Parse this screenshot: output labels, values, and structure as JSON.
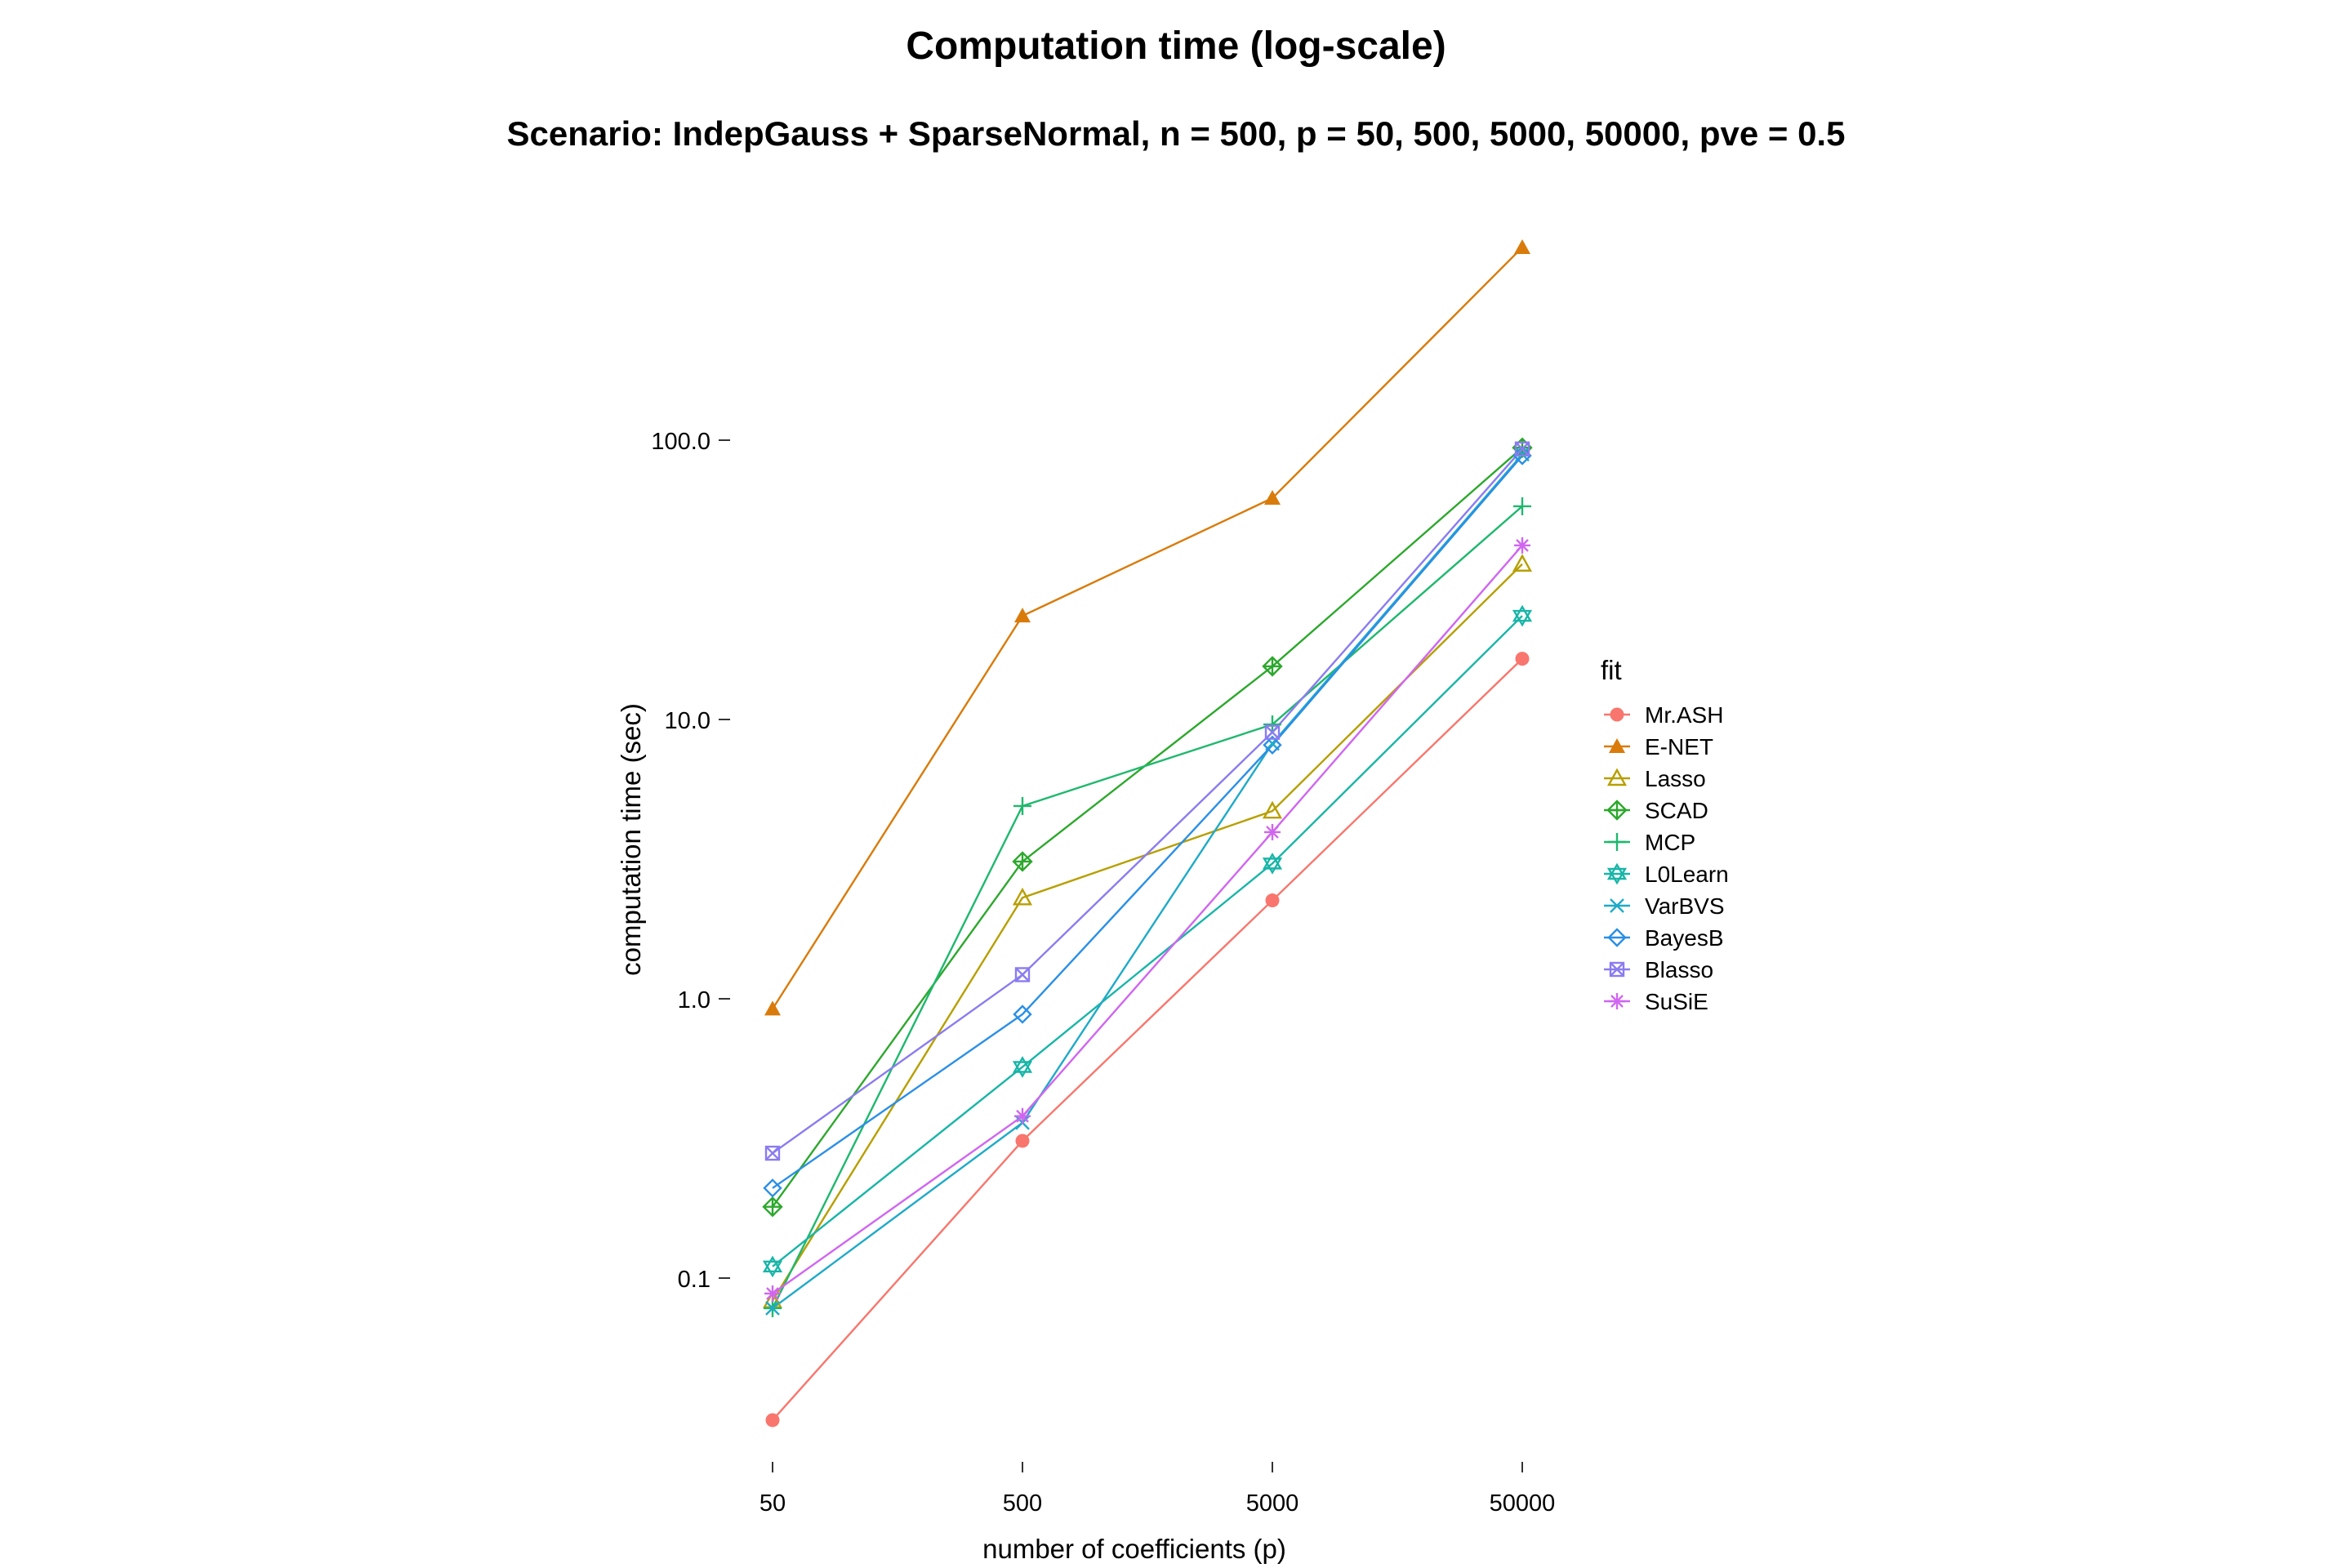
{
  "chart_data": {
    "type": "line",
    "title": "Computation time (log-scale)",
    "subtitle": "Scenario: IndepGauss + SparseNormal, n = 500, p = 50, 500, 5000, 50000, pve = 0.5",
    "xlabel": "number of coefficients (p)",
    "ylabel": "computation time (sec)",
    "x_scale": "log10",
    "y_scale": "log10",
    "x": [
      50,
      500,
      5000,
      50000
    ],
    "x_tick_labels": [
      "50",
      "500",
      "5000",
      "50000"
    ],
    "y_ticks": [
      0.1,
      1.0,
      10.0,
      100.0
    ],
    "y_tick_labels": [
      "0.1",
      "1.0",
      "10.0",
      "100.0"
    ],
    "ylim": [
      0.02,
      800
    ],
    "grid": false,
    "legend_title": "fit",
    "legend_position": "right",
    "series": [
      {
        "name": "Mr.ASH",
        "color": "#F8766D",
        "shape": "filled-circle",
        "values": [
          0.031,
          0.31,
          2.25,
          16.5
        ]
      },
      {
        "name": "E-NET",
        "color": "#D97B0A",
        "shape": "filled-triangle",
        "values": [
          0.92,
          23.5,
          62,
          490
        ]
      },
      {
        "name": "Lasso",
        "color": "#B79F00",
        "shape": "open-triangle",
        "values": [
          0.083,
          2.3,
          4.7,
          36
        ]
      },
      {
        "name": "SCAD",
        "color": "#2DA82D",
        "shape": "diamond-plus",
        "values": [
          0.18,
          3.1,
          15.5,
          94
        ]
      },
      {
        "name": "MCP",
        "color": "#1FB86E",
        "shape": "plus",
        "values": [
          0.078,
          4.9,
          9.6,
          58
        ]
      },
      {
        "name": "L0Learn",
        "color": "#19B5A8",
        "shape": "star-of-david",
        "values": [
          0.11,
          0.57,
          3.05,
          23.5
        ]
      },
      {
        "name": "VarBVS",
        "color": "#1FAAC8",
        "shape": "cross",
        "values": [
          0.078,
          0.36,
          8.2,
          89
        ]
      },
      {
        "name": "BayesB",
        "color": "#2A8FE6",
        "shape": "open-diamond",
        "values": [
          0.21,
          0.88,
          8.1,
          88
        ]
      },
      {
        "name": "Blasso",
        "color": "#8A7CF0",
        "shape": "square-x",
        "values": [
          0.28,
          1.22,
          9.0,
          93
        ]
      },
      {
        "name": "SuSiE",
        "color": "#D066F0",
        "shape": "asterisk",
        "values": [
          0.088,
          0.38,
          3.95,
          42
        ]
      }
    ]
  }
}
